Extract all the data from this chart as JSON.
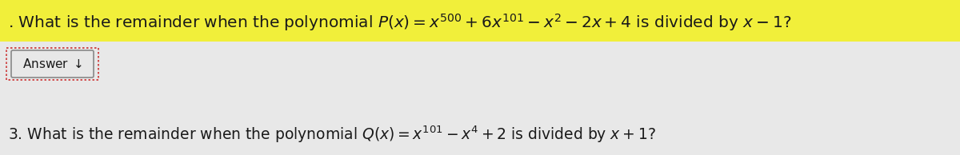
{
  "background_color": "#e8e8e8",
  "page_bg": "#dcdcdc",
  "highlight_color": "#f5f200",
  "highlight_alpha": 0.75,
  "line1_text": ". What is the remainder when the polynomial $P(x) = x^{500} + 6x^{101} - x^2 - 2x + 4$ is divided by $x - 1$?",
  "line2_label": "Answer $\\downarrow$",
  "line3_text": "3. What is the remainder when the polynomial $Q(x) = x^{101} - x^4 + 2$ is divided by $x + 1$?",
  "font_size_line1": 14.5,
  "font_size_line3": 13.5,
  "font_size_answer": 11,
  "text_color": "#1a1a1a",
  "answer_outer_color": "#cc3333",
  "answer_inner_color": "#888888"
}
